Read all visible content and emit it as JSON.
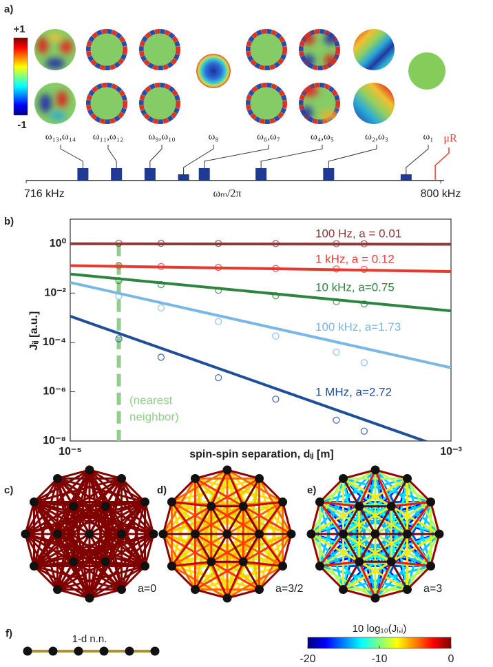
{
  "panel_labels": [
    "a)",
    "b)",
    "c)",
    "d)",
    "e)",
    "f)"
  ],
  "mode_colorbar": {
    "max_label": "+1",
    "min_label": "-1"
  },
  "chart_data": [
    {
      "type": "bar",
      "categories": [
        "ω₁₃,ω₁₄",
        "ω₁₁,ω₁₂",
        "ω₉,ω₁₀",
        "ω₈",
        "ω₆,ω₇",
        "ω₄,ω₅",
        "ω₂,ω₃",
        "ω₁"
      ],
      "values": [
        727.5,
        734.3,
        741.1,
        747.9,
        752.1,
        763.6,
        777.3,
        793.0
      ],
      "color": "#1f3a93",
      "xlim": [
        716,
        800
      ],
      "xticks": [
        {
          "value": 716,
          "label": "716 kHz"
        },
        {
          "value": 800,
          "label": "800 kHz"
        }
      ],
      "xlabel": "ωₘ/2π",
      "marker": {
        "label": "μR",
        "value": 798.9,
        "color": "#e8413c"
      }
    },
    {
      "type": "line",
      "log_x": true,
      "log_y": true,
      "xlabel": "spin-spin separation, dᵢⱼ [m]",
      "ylabel": "Jᵢⱼ [a.u.]",
      "x": [
        1e-05,
        0.001
      ],
      "xlim": [
        1e-05,
        0.001
      ],
      "ylim": [
        1e-08,
        10
      ],
      "xticks": [
        {
          "value": 1e-05,
          "label": "10⁻⁵"
        },
        {
          "value": 0.001,
          "label": "10⁻³"
        }
      ],
      "yticks": [
        {
          "value": 1,
          "label": "10⁰"
        },
        {
          "value": 0.01,
          "label": "10⁻²"
        },
        {
          "value": 0.0001,
          "label": "10⁻⁴"
        },
        {
          "value": 1e-06,
          "label": "10⁻⁶"
        },
        {
          "value": 1e-08,
          "label": "10⁻⁸"
        }
      ],
      "scatter_x": [
        1.8e-05,
        3e-05,
        6e-05,
        0.00012,
        0.00025,
        0.00035
      ],
      "series": [
        {
          "name": "100 Hz, a = 0.01",
          "color": "#8b3a3a",
          "values": [
            1.0,
            0.955
          ],
          "scatter_values": [
            1.05,
            1.04,
            1.03,
            1.02,
            1.01,
            1.0
          ]
        },
        {
          "name": "1 kHz, a = 0.12",
          "color": "#e53a2f",
          "values": [
            0.13,
            0.075
          ],
          "scatter_values": [
            0.13,
            0.12,
            0.11,
            0.1,
            0.095,
            0.092
          ]
        },
        {
          "name": "10 kHz, a=0.75",
          "color": "#2e8540",
          "values": [
            0.059,
            0.0019
          ],
          "scatter_values": [
            0.032,
            0.022,
            0.013,
            0.0078,
            0.0045,
            0.0036
          ]
        },
        {
          "name": "100 kHz, a=1.73",
          "color": "#79b7e6",
          "values": [
            0.027,
            9.4e-06
          ],
          "scatter_values": [
            0.0075,
            0.0025,
            0.0007,
            0.00018,
            4e-05,
            1.5e-05
          ]
        },
        {
          "name": "1 MHz, a=2.72",
          "color": "#1f4e9a",
          "values": [
            0.00115,
            4.2e-09
          ],
          "scatter_values": [
            0.00014,
            2.5e-05,
            3.7e-06,
            5e-07,
            7e-08,
            2.5e-08
          ]
        }
      ],
      "nearest_neighbor": {
        "x": 1.8e-05,
        "label_lines": [
          "(nearest",
          "neighbor)"
        ],
        "color": "#8fcf8a"
      }
    }
  ],
  "interaction_graphs": {
    "panels": [
      {
        "a": {
          "value": 0,
          "label": "a=0"
        }
      },
      {
        "a": {
          "value": 1.5,
          "label": "a=3/2"
        }
      },
      {
        "a": {
          "value": 3,
          "label": "a=3"
        }
      }
    ],
    "colorbar": {
      "title": "10 log₁₀(Jᵢ,ⱼ)",
      "lim": [
        -20,
        0
      ],
      "ticks": [
        -20,
        -10,
        0
      ]
    }
  },
  "chain": {
    "label": "1-d n.n.",
    "color": "#a8923c",
    "nodes": 6
  }
}
